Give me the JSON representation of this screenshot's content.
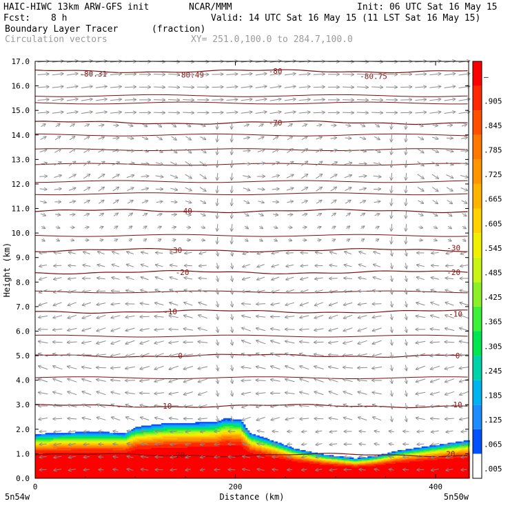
{
  "header": {
    "title": "HAIC-HIWC 13km ARW-GFS init",
    "center": "NCAR/MMM",
    "init": "Init: 06 UTC Sat 16 May 15",
    "fcst_label": "Fcst:",
    "fcst_value": "8 h",
    "valid": "Valid: 14 UTC Sat 16 May 15 (11 LST Sat 16 May 15)",
    "field_name": "Boundary Layer Tracer",
    "field_units": "(fraction)",
    "vector_label": "Circulation vectors",
    "xy_range": "XY= 251.0,100.0 to 284.7,100.0"
  },
  "chart_data": {
    "type": "heatmap",
    "xlabel": "Distance (km)",
    "ylabel": "Height (km)",
    "xlim": [
      0,
      433
    ],
    "ylim": [
      0,
      17
    ],
    "x_ticks": [
      "0",
      "200",
      "400"
    ],
    "x_tick_values": [
      0,
      200,
      400
    ],
    "y_ticks": [
      "0.0",
      "1.0",
      "2.0",
      "3.0",
      "4.0",
      "5.0",
      "6.0",
      "7.0",
      "8.0",
      "9.0",
      "10.0",
      "11.0",
      "12.0",
      "13.0",
      "14.0",
      "15.0",
      "16.0",
      "17.0"
    ],
    "y_tick_values": [
      0,
      1,
      2,
      3,
      4,
      5,
      6,
      7,
      8,
      9,
      10,
      11,
      12,
      13,
      14,
      15,
      16,
      17
    ],
    "corner_left": "5n54w",
    "corner_right": "5n50w",
    "colorbar": {
      "labels": [
        ".005",
        ".065",
        ".125",
        ".185",
        ".245",
        ".305",
        ".365",
        ".425",
        ".485",
        ".545",
        ".605",
        ".665",
        ".725",
        ".785",
        ".845",
        ".905",
        "–"
      ],
      "values": [
        0.005,
        0.065,
        0.125,
        0.185,
        0.245,
        0.305,
        0.365,
        0.425,
        0.485,
        0.545,
        0.605,
        0.665,
        0.725,
        0.785,
        0.845,
        0.905,
        1.0
      ],
      "colors": [
        "#ffffff",
        "#0050ff",
        "#1e8cff",
        "#00b4f0",
        "#00d2aa",
        "#00e650",
        "#3cf03c",
        "#8cf028",
        "#c8f514",
        "#f0f000",
        "#ffd200",
        "#ffb400",
        "#ff9600",
        "#ff7800",
        "#ff5000",
        "#ff2800",
        "#ff0000"
      ]
    },
    "tracer_top_km": [
      [
        0,
        1.8
      ],
      [
        20,
        1.85
      ],
      [
        60,
        1.9
      ],
      [
        90,
        1.85
      ],
      [
        100,
        2.1
      ],
      [
        130,
        2.25
      ],
      [
        180,
        2.3
      ],
      [
        190,
        2.45
      ],
      [
        205,
        2.4
      ],
      [
        215,
        1.85
      ],
      [
        240,
        1.5
      ],
      [
        260,
        1.2
      ],
      [
        290,
        0.95
      ],
      [
        320,
        0.8
      ],
      [
        340,
        0.9
      ],
      [
        360,
        1.1
      ],
      [
        400,
        1.35
      ],
      [
        433,
        1.55
      ]
    ],
    "isotherms": [
      {
        "label": "20",
        "y_km": 0.95
      },
      {
        "label": "10",
        "y_km": 2.95
      },
      {
        "label": "0",
        "y_km": 5.0
      },
      {
        "label": "-10",
        "y_km": 6.8
      },
      {
        "label": "-20",
        "y_km": 8.4
      },
      {
        "label": "-30",
        "y_km": 9.3
      },
      {
        "label": "-40",
        "y_km": 10.9
      },
      {
        "label": "-70",
        "y_km": 14.5
      },
      {
        "label": "-80",
        "y_km": 16.6
      },
      {
        "label": "-80.31",
        "y_km": 16.5
      },
      {
        "label": "-80.49",
        "y_km": 16.45
      },
      {
        "label": "-80.75",
        "y_km": 16.4
      }
    ],
    "grid": false,
    "legend": "right"
  }
}
